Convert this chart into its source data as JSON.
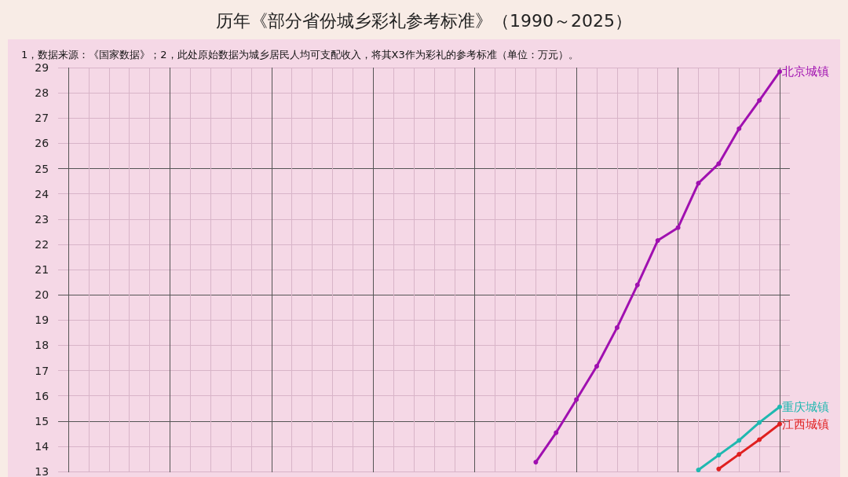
{
  "chart_data": {
    "type": "line",
    "title": "历年《部分省份城乡彩礼参考标准》（1990～2025）",
    "subtitle": "1，数据来源：《国家数据》；2，此处原始数据为城乡居民人均可支配收入，将其X3作为彩礼的参考标准（单位：万元）。",
    "categories": [
      null,
      null,
      null,
      null,
      null,
      null,
      null,
      null,
      null,
      null,
      null,
      null,
      null,
      null,
      null,
      null,
      null,
      null,
      null,
      null,
      null,
      null,
      null,
      null,
      null,
      null,
      null,
      null,
      null,
      null,
      null,
      null,
      null,
      null,
      null,
      null
    ],
    "series": [
      {
        "name": "北京城镇",
        "color": "#a010b0",
        "values": [
          null,
          null,
          null,
          null,
          null,
          null,
          null,
          null,
          null,
          null,
          null,
          null,
          null,
          null,
          null,
          null,
          null,
          null,
          null,
          null,
          null,
          null,
          null,
          13.37,
          14.54,
          15.85,
          17.17,
          18.7,
          20.39,
          22.15,
          22.66,
          24.42,
          25.19,
          26.58,
          27.7,
          28.84
        ]
      },
      {
        "name": "重庆城镇",
        "color": "#20b8b0",
        "values": [
          null,
          null,
          null,
          null,
          null,
          null,
          null,
          null,
          null,
          null,
          null,
          null,
          null,
          null,
          null,
          null,
          null,
          null,
          null,
          null,
          null,
          null,
          null,
          null,
          null,
          null,
          null,
          null,
          null,
          null,
          null,
          13.06,
          13.65,
          14.23,
          14.94,
          15.56
        ]
      },
      {
        "name": "江西城镇",
        "color": "#e02020",
        "values": [
          null,
          null,
          null,
          null,
          null,
          null,
          null,
          null,
          null,
          null,
          null,
          null,
          null,
          null,
          null,
          null,
          null,
          null,
          null,
          null,
          null,
          null,
          null,
          null,
          null,
          null,
          null,
          null,
          null,
          null,
          null,
          null,
          13.1,
          13.68,
          14.26,
          14.88
        ]
      }
    ],
    "ylim": [
      13,
      29
    ],
    "yticks": [
      13,
      14,
      15,
      16,
      17,
      18,
      19,
      20,
      21,
      22,
      23,
      24,
      25,
      26,
      27,
      28,
      29
    ],
    "tick_labels": "y",
    "legend": "right",
    "grid": true,
    "marker": "circle",
    "line_style": "solid"
  }
}
